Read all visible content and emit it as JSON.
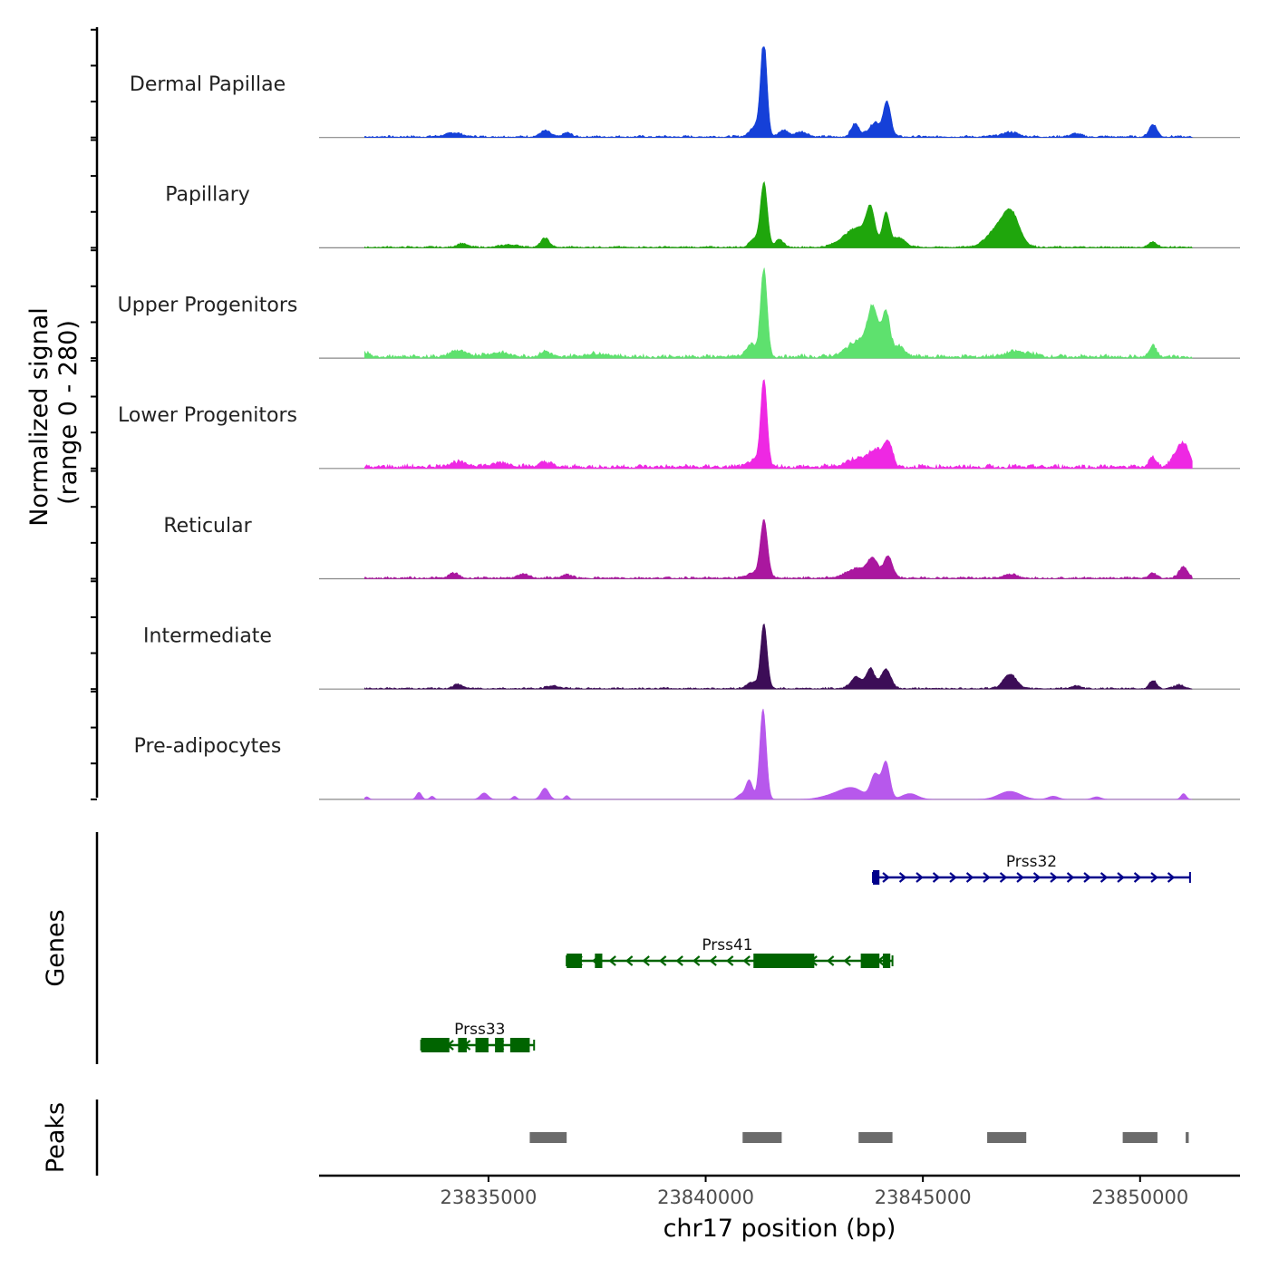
{
  "chart_data": {
    "type": "area",
    "title": "",
    "xlabel": "chr17 position (bp)",
    "ylabel_line1": "Normalized signal",
    "ylabel_line2": "(range 0 - 280)",
    "y_range": [
      0,
      280
    ],
    "xlim": [
      23831100,
      23852300
    ],
    "x_ticks": [
      23835000,
      23840000,
      23845000,
      23850000
    ],
    "x_tick_labels": [
      "23835000",
      "23840000",
      "23845000",
      "23850000"
    ],
    "signal_start": 23832150,
    "signal_end": 23851200,
    "tracks": [
      {
        "name": "Dermal Papillae",
        "color": "#1540d8",
        "noise": 5,
        "noiseEnd": 23851200,
        "peaks": [
          {
            "x": 23841340,
            "h": 280,
            "w": 70
          },
          {
            "x": 23841200,
            "h": 40,
            "w": 150
          },
          {
            "x": 23841800,
            "h": 20,
            "w": 100
          },
          {
            "x": 23842200,
            "h": 15,
            "w": 150
          },
          {
            "x": 23843440,
            "h": 40,
            "w": 90
          },
          {
            "x": 23843780,
            "h": 22,
            "w": 120
          },
          {
            "x": 23843920,
            "h": 32,
            "w": 80
          },
          {
            "x": 23844170,
            "h": 110,
            "w": 90
          },
          {
            "x": 23834200,
            "h": 12,
            "w": 200
          },
          {
            "x": 23836300,
            "h": 18,
            "w": 120
          },
          {
            "x": 23836800,
            "h": 12,
            "w": 100
          },
          {
            "x": 23847000,
            "h": 14,
            "w": 200
          },
          {
            "x": 23848500,
            "h": 10,
            "w": 120
          },
          {
            "x": 23850300,
            "h": 38,
            "w": 90
          }
        ]
      },
      {
        "name": "Papillary",
        "color": "#1fa60c",
        "noise": 4,
        "noiseEnd": 23851200,
        "peaks": [
          {
            "x": 23841340,
            "h": 200,
            "w": 80
          },
          {
            "x": 23841100,
            "h": 25,
            "w": 100
          },
          {
            "x": 23841700,
            "h": 22,
            "w": 100
          },
          {
            "x": 23843300,
            "h": 35,
            "w": 250
          },
          {
            "x": 23843800,
            "h": 100,
            "w": 100
          },
          {
            "x": 23844150,
            "h": 105,
            "w": 80
          },
          {
            "x": 23843600,
            "h": 40,
            "w": 200
          },
          {
            "x": 23844450,
            "h": 30,
            "w": 150
          },
          {
            "x": 23846800,
            "h": 65,
            "w": 280
          },
          {
            "x": 23847050,
            "h": 70,
            "w": 180
          },
          {
            "x": 23834400,
            "h": 12,
            "w": 120
          },
          {
            "x": 23836300,
            "h": 28,
            "w": 100
          },
          {
            "x": 23850300,
            "h": 15,
            "w": 100
          },
          {
            "x": 23835500,
            "h": 8,
            "w": 200
          }
        ]
      },
      {
        "name": "Upper Progenitors",
        "color": "#5ee16e",
        "noise": 9,
        "noiseEnd": 23851200,
        "peaks": [
          {
            "x": 23841340,
            "h": 270,
            "w": 75
          },
          {
            "x": 23841050,
            "h": 40,
            "w": 120
          },
          {
            "x": 23843600,
            "h": 55,
            "w": 300
          },
          {
            "x": 23843850,
            "h": 120,
            "w": 110
          },
          {
            "x": 23844150,
            "h": 130,
            "w": 90
          },
          {
            "x": 23844450,
            "h": 30,
            "w": 140
          },
          {
            "x": 23834300,
            "h": 18,
            "w": 200
          },
          {
            "x": 23835200,
            "h": 12,
            "w": 300
          },
          {
            "x": 23836300,
            "h": 16,
            "w": 120
          },
          {
            "x": 23832200,
            "h": 12,
            "w": 80
          },
          {
            "x": 23847200,
            "h": 16,
            "w": 300
          },
          {
            "x": 23850300,
            "h": 32,
            "w": 80
          },
          {
            "x": 23837500,
            "h": 10,
            "w": 300
          }
        ]
      },
      {
        "name": "Lower Progenitors",
        "color": "#ee28e3",
        "noise": 10,
        "noiseEnd": 23851200,
        "peaks": [
          {
            "x": 23841340,
            "h": 270,
            "w": 75
          },
          {
            "x": 23841050,
            "h": 18,
            "w": 120
          },
          {
            "x": 23843600,
            "h": 30,
            "w": 300
          },
          {
            "x": 23844200,
            "h": 70,
            "w": 100
          },
          {
            "x": 23843950,
            "h": 35,
            "w": 150
          },
          {
            "x": 23834300,
            "h": 14,
            "w": 250
          },
          {
            "x": 23835300,
            "h": 12,
            "w": 250
          },
          {
            "x": 23836300,
            "h": 14,
            "w": 150
          },
          {
            "x": 23850300,
            "h": 28,
            "w": 90
          },
          {
            "x": 23850900,
            "h": 50,
            "w": 150
          },
          {
            "x": 23851050,
            "h": 40,
            "w": 110
          }
        ]
      },
      {
        "name": "Reticular",
        "color": "#aa179f",
        "noise": 5,
        "noiseEnd": 23851200,
        "peaks": [
          {
            "x": 23841340,
            "h": 180,
            "w": 85
          },
          {
            "x": 23841050,
            "h": 14,
            "w": 120
          },
          {
            "x": 23843500,
            "h": 30,
            "w": 250
          },
          {
            "x": 23843850,
            "h": 50,
            "w": 120
          },
          {
            "x": 23844200,
            "h": 68,
            "w": 100
          },
          {
            "x": 23834200,
            "h": 15,
            "w": 110
          },
          {
            "x": 23835800,
            "h": 10,
            "w": 150
          },
          {
            "x": 23836800,
            "h": 10,
            "w": 120
          },
          {
            "x": 23847000,
            "h": 12,
            "w": 150
          },
          {
            "x": 23850300,
            "h": 14,
            "w": 90
          },
          {
            "x": 23851000,
            "h": 35,
            "w": 100
          }
        ]
      },
      {
        "name": "Intermediate",
        "color": "#3c0d57",
        "noise": 4,
        "noiseEnd": 23851200,
        "peaks": [
          {
            "x": 23841340,
            "h": 200,
            "w": 75
          },
          {
            "x": 23841050,
            "h": 20,
            "w": 110
          },
          {
            "x": 23843450,
            "h": 22,
            "w": 100
          },
          {
            "x": 23843800,
            "h": 50,
            "w": 90
          },
          {
            "x": 23844150,
            "h": 60,
            "w": 110
          },
          {
            "x": 23843600,
            "h": 18,
            "w": 220
          },
          {
            "x": 23847000,
            "h": 45,
            "w": 150
          },
          {
            "x": 23834300,
            "h": 12,
            "w": 120
          },
          {
            "x": 23836500,
            "h": 8,
            "w": 150
          },
          {
            "x": 23848500,
            "h": 8,
            "w": 100
          },
          {
            "x": 23850300,
            "h": 25,
            "w": 80
          },
          {
            "x": 23850900,
            "h": 12,
            "w": 100
          }
        ]
      },
      {
        "name": "Pre-adipocytes",
        "color": "#b758ec",
        "noise": 0,
        "noiseEnd": 23851200,
        "peaks": [
          {
            "x": 23841320,
            "h": 280,
            "w": 75
          },
          {
            "x": 23841000,
            "h": 60,
            "w": 80
          },
          {
            "x": 23840800,
            "h": 14,
            "w": 80
          },
          {
            "x": 23843400,
            "h": 30,
            "w": 250
          },
          {
            "x": 23843900,
            "h": 75,
            "w": 100
          },
          {
            "x": 23844150,
            "h": 115,
            "w": 90
          },
          {
            "x": 23843000,
            "h": 15,
            "w": 300
          },
          {
            "x": 23844700,
            "h": 18,
            "w": 180
          },
          {
            "x": 23836300,
            "h": 35,
            "w": 90
          },
          {
            "x": 23834900,
            "h": 20,
            "w": 90
          },
          {
            "x": 23833400,
            "h": 22,
            "w": 60
          },
          {
            "x": 23832200,
            "h": 8,
            "w": 50
          },
          {
            "x": 23833700,
            "h": 10,
            "w": 50
          },
          {
            "x": 23835600,
            "h": 10,
            "w": 50
          },
          {
            "x": 23836800,
            "h": 12,
            "w": 50
          },
          {
            "x": 23847000,
            "h": 25,
            "w": 250
          },
          {
            "x": 23848000,
            "h": 10,
            "w": 120
          },
          {
            "x": 23849000,
            "h": 8,
            "w": 100
          },
          {
            "x": 23851000,
            "h": 18,
            "w": 60
          }
        ]
      }
    ],
    "genes_label": "Genes",
    "genes": [
      {
        "name": "Prss32",
        "color": "#00008b",
        "strand": "+",
        "row": 0,
        "start": 23843850,
        "end": 23851150,
        "exons": [
          [
            23843850,
            23844000
          ]
        ],
        "label_x": 23847500
      },
      {
        "name": "Prss41",
        "color": "#006400",
        "strand": "-",
        "row": 1,
        "start": 23836800,
        "end": 23844300,
        "exons": [
          [
            23836800,
            23837150
          ],
          [
            23837450,
            23837620
          ],
          [
            23841100,
            23842500
          ],
          [
            23843570,
            23844000
          ],
          [
            23844080,
            23844250
          ]
        ],
        "label_x": 23840500
      },
      {
        "name": "Prss33",
        "color": "#006400",
        "strand": "-",
        "row": 2,
        "start": 23833450,
        "end": 23836050,
        "exons": [
          [
            23833450,
            23834100
          ],
          [
            23834300,
            23834500
          ],
          [
            23834700,
            23835000
          ],
          [
            23835150,
            23835350
          ],
          [
            23835500,
            23835950
          ]
        ],
        "label_x": 23834800
      }
    ],
    "peaks_label": "Peaks",
    "peaks": [
      [
        23835950,
        23836800
      ],
      [
        23840850,
        23841750
      ],
      [
        23843520,
        23844300
      ],
      [
        23846480,
        23847380
      ],
      [
        23849600,
        23850400
      ],
      [
        23851050,
        23851120
      ]
    ]
  }
}
